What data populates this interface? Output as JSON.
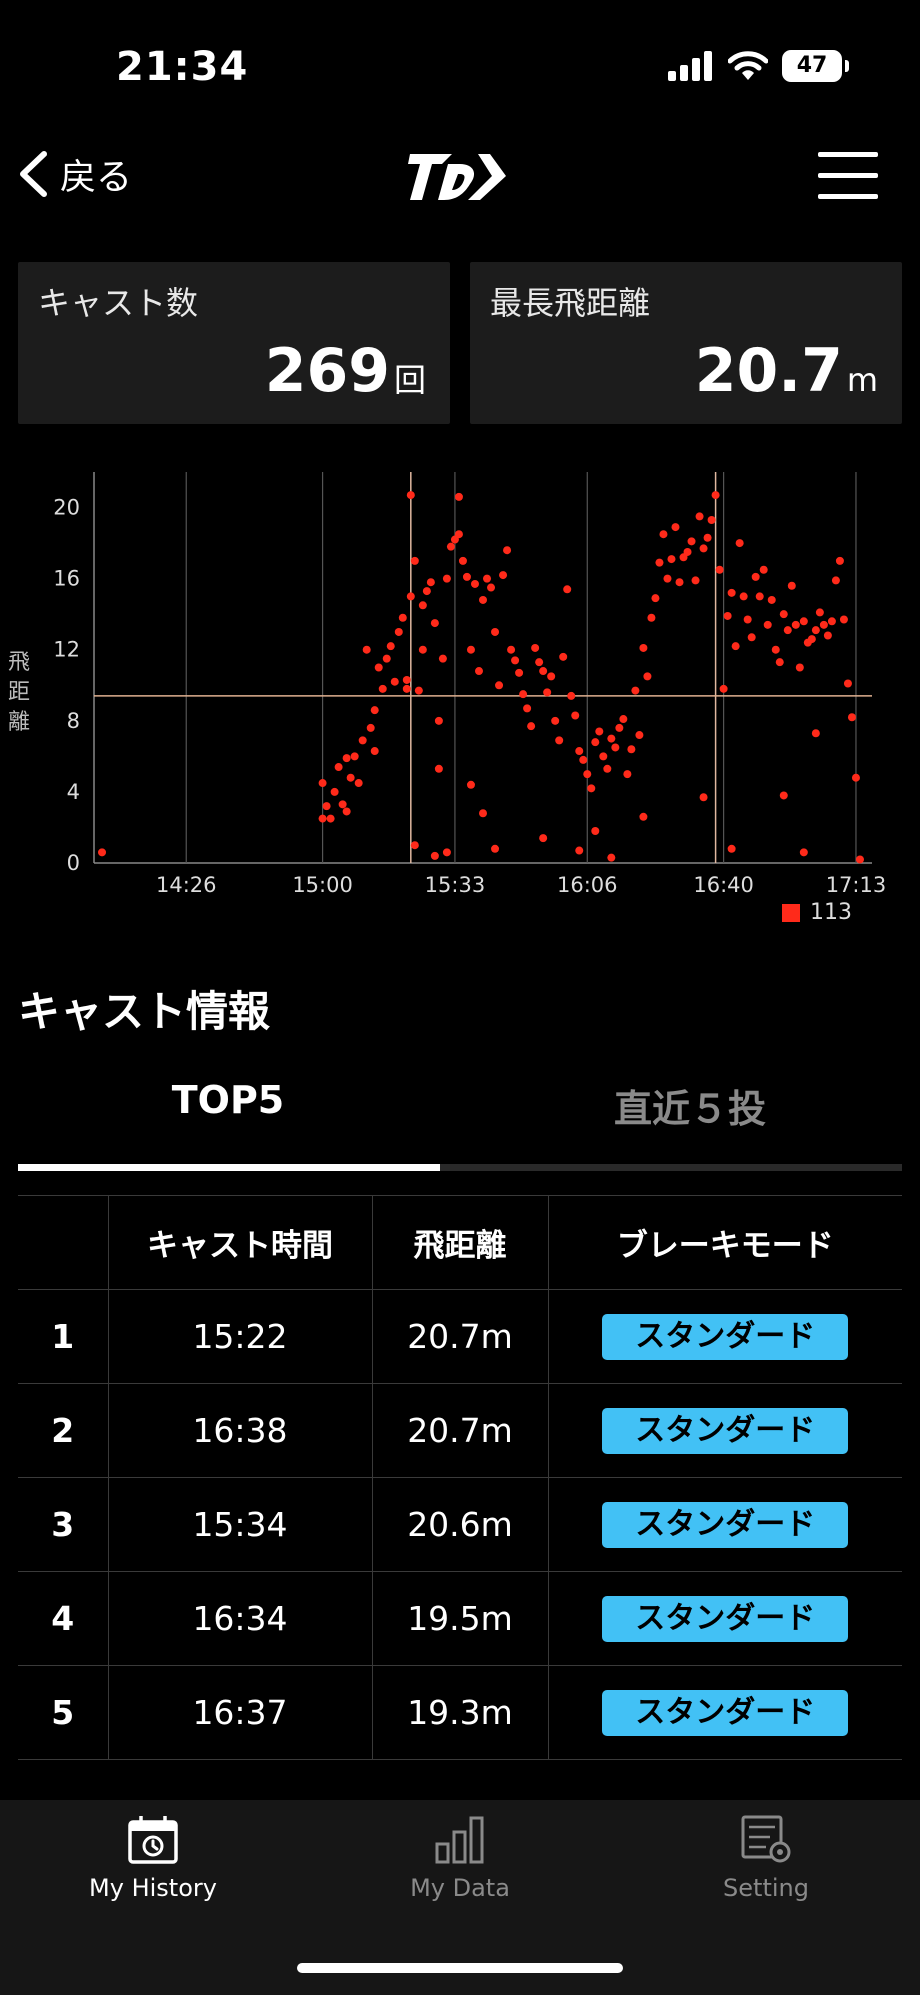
{
  "status_bar": {
    "time": "21:34",
    "battery": "47"
  },
  "nav": {
    "back_label": "戻る",
    "logo": "daiwa-logo"
  },
  "stats": {
    "cast_count": {
      "title": "キャスト数",
      "value": "269",
      "unit": "回"
    },
    "max_distance": {
      "title": "最長飛距離",
      "value": "20.7",
      "unit": "m"
    }
  },
  "chart_data": {
    "type": "scatter",
    "ylabel": "飛距離",
    "ylim": [
      0,
      22
    ],
    "y_ticks": [
      "0",
      "4",
      "8",
      "12",
      "16",
      "20"
    ],
    "x_ticks": [
      "14:26",
      "15:00",
      "15:33",
      "16:06",
      "16:40",
      "17:13"
    ],
    "x_range": [
      "14:03",
      "17:17"
    ],
    "reference_line_y": 9.4,
    "vertical_markers": [
      "15:22",
      "16:38"
    ],
    "legend": "113",
    "color": "#ff2a1a",
    "series": [
      {
        "name": "113",
        "points": [
          [
            "14:05",
            0.6
          ],
          [
            "15:00",
            4.5
          ],
          [
            "15:00",
            2.5
          ],
          [
            "15:01",
            3.2
          ],
          [
            "15:02",
            2.5
          ],
          [
            "15:03",
            4.0
          ],
          [
            "15:04",
            5.4
          ],
          [
            "15:05",
            3.3
          ],
          [
            "15:06",
            2.9
          ],
          [
            "15:06",
            5.9
          ],
          [
            "15:07",
            4.8
          ],
          [
            "15:08",
            6.0
          ],
          [
            "15:09",
            4.5
          ],
          [
            "15:10",
            6.9
          ],
          [
            "15:11",
            12.0
          ],
          [
            "15:12",
            7.6
          ],
          [
            "15:13",
            8.6
          ],
          [
            "15:13",
            6.3
          ],
          [
            "15:14",
            11.0
          ],
          [
            "15:15",
            9.8
          ],
          [
            "15:16",
            11.5
          ],
          [
            "15:17",
            12.2
          ],
          [
            "15:18",
            10.2
          ],
          [
            "15:19",
            13.0
          ],
          [
            "15:20",
            13.8
          ],
          [
            "15:21",
            10.3
          ],
          [
            "15:21",
            9.8
          ],
          [
            "15:22",
            20.7
          ],
          [
            "15:22",
            15.0
          ],
          [
            "15:23",
            17.0
          ],
          [
            "15:24",
            9.7
          ],
          [
            "15:25",
            14.5
          ],
          [
            "15:25",
            12.0
          ],
          [
            "15:26",
            15.3
          ],
          [
            "15:27",
            15.8
          ],
          [
            "15:28",
            13.5
          ],
          [
            "15:29",
            8.0
          ],
          [
            "15:29",
            5.3
          ],
          [
            "15:30",
            11.5
          ],
          [
            "15:31",
            16.0
          ],
          [
            "15:32",
            17.8
          ],
          [
            "15:33",
            18.2
          ],
          [
            "15:34",
            20.6
          ],
          [
            "15:34",
            18.5
          ],
          [
            "15:35",
            17.0
          ],
          [
            "15:36",
            16.1
          ],
          [
            "15:37",
            12.0
          ],
          [
            "15:38",
            15.7
          ],
          [
            "15:39",
            10.8
          ],
          [
            "15:40",
            14.8
          ],
          [
            "15:41",
            16.0
          ],
          [
            "15:42",
            15.5
          ],
          [
            "15:43",
            13.0
          ],
          [
            "15:44",
            10.0
          ],
          [
            "15:45",
            16.2
          ],
          [
            "15:46",
            17.6
          ],
          [
            "15:47",
            12.0
          ],
          [
            "15:48",
            11.4
          ],
          [
            "15:49",
            10.7
          ],
          [
            "15:50",
            9.5
          ],
          [
            "15:51",
            8.7
          ],
          [
            "15:52",
            7.7
          ],
          [
            "15:53",
            12.1
          ],
          [
            "15:54",
            11.3
          ],
          [
            "15:55",
            10.8
          ],
          [
            "15:56",
            9.6
          ],
          [
            "15:57",
            10.5
          ],
          [
            "15:58",
            8.0
          ],
          [
            "15:59",
            6.9
          ],
          [
            "16:00",
            11.6
          ],
          [
            "16:01",
            15.4
          ],
          [
            "16:02",
            9.4
          ],
          [
            "16:03",
            8.3
          ],
          [
            "16:04",
            6.3
          ],
          [
            "16:05",
            5.8
          ],
          [
            "16:06",
            5.0
          ],
          [
            "16:07",
            4.2
          ],
          [
            "16:08",
            6.8
          ],
          [
            "16:09",
            7.4
          ],
          [
            "16:10",
            6.0
          ],
          [
            "16:11",
            5.3
          ],
          [
            "16:12",
            7.0
          ],
          [
            "16:13",
            6.5
          ],
          [
            "16:14",
            7.6
          ],
          [
            "16:15",
            8.1
          ],
          [
            "16:16",
            5.0
          ],
          [
            "16:17",
            6.4
          ],
          [
            "16:18",
            9.7
          ],
          [
            "16:19",
            7.2
          ],
          [
            "16:20",
            12.1
          ],
          [
            "16:21",
            10.5
          ],
          [
            "16:22",
            13.8
          ],
          [
            "16:23",
            14.9
          ],
          [
            "16:24",
            16.9
          ],
          [
            "16:25",
            18.5
          ],
          [
            "16:26",
            16.0
          ],
          [
            "16:27",
            17.1
          ],
          [
            "16:28",
            18.9
          ],
          [
            "16:29",
            15.8
          ],
          [
            "16:30",
            17.2
          ],
          [
            "16:31",
            17.5
          ],
          [
            "16:32",
            18.1
          ],
          [
            "16:33",
            15.9
          ],
          [
            "16:34",
            19.5
          ],
          [
            "16:35",
            17.7
          ],
          [
            "16:36",
            18.3
          ],
          [
            "16:37",
            19.3
          ],
          [
            "16:38",
            20.7
          ],
          [
            "16:39",
            16.5
          ],
          [
            "16:40",
            9.8
          ],
          [
            "16:41",
            13.9
          ],
          [
            "16:42",
            15.2
          ],
          [
            "16:43",
            12.2
          ],
          [
            "16:44",
            18.0
          ],
          [
            "16:45",
            15.0
          ],
          [
            "16:46",
            13.7
          ],
          [
            "16:47",
            12.7
          ],
          [
            "16:48",
            16.1
          ],
          [
            "16:49",
            15.0
          ],
          [
            "16:50",
            16.5
          ],
          [
            "16:51",
            13.4
          ],
          [
            "16:52",
            14.8
          ],
          [
            "16:53",
            12.0
          ],
          [
            "16:54",
            11.3
          ],
          [
            "16:55",
            14.0
          ],
          [
            "16:56",
            13.1
          ],
          [
            "16:57",
            15.6
          ],
          [
            "16:58",
            13.4
          ],
          [
            "16:59",
            11.0
          ],
          [
            "17:00",
            13.6
          ],
          [
            "17:01",
            12.4
          ],
          [
            "17:02",
            12.6
          ],
          [
            "17:03",
            13.1
          ],
          [
            "17:04",
            14.1
          ],
          [
            "17:05",
            13.4
          ],
          [
            "17:06",
            12.8
          ],
          [
            "17:07",
            13.6
          ],
          [
            "17:08",
            15.9
          ],
          [
            "17:09",
            17.0
          ],
          [
            "17:10",
            13.7
          ],
          [
            "17:11",
            10.1
          ],
          [
            "17:12",
            8.2
          ],
          [
            "17:13",
            4.8
          ],
          [
            "17:14",
            0.2
          ],
          [
            "15:23",
            1.0
          ],
          [
            "15:28",
            0.4
          ],
          [
            "15:31",
            0.6
          ],
          [
            "15:37",
            4.4
          ],
          [
            "15:40",
            2.8
          ],
          [
            "15:43",
            0.8
          ],
          [
            "15:55",
            1.4
          ],
          [
            "16:04",
            0.7
          ],
          [
            "16:08",
            1.8
          ],
          [
            "16:12",
            0.3
          ],
          [
            "16:20",
            2.6
          ],
          [
            "16:35",
            3.7
          ],
          [
            "16:42",
            0.8
          ],
          [
            "16:55",
            3.8
          ],
          [
            "17:00",
            0.6
          ],
          [
            "17:03",
            7.3
          ]
        ]
      }
    ]
  },
  "cast_info": {
    "title": "キャスト情報",
    "tabs": [
      "TOP5",
      "直近５投"
    ],
    "columns": [
      "",
      "キャスト時間",
      "飛距離",
      "ブレーキモード"
    ],
    "rows": [
      {
        "rank": "1",
        "time": "15:22",
        "distance": "20.7m",
        "mode": "スタンダード"
      },
      {
        "rank": "2",
        "time": "16:38",
        "distance": "20.7m",
        "mode": "スタンダード"
      },
      {
        "rank": "3",
        "time": "15:34",
        "distance": "20.6m",
        "mode": "スタンダード"
      },
      {
        "rank": "4",
        "time": "16:34",
        "distance": "19.5m",
        "mode": "スタンダード"
      },
      {
        "rank": "5",
        "time": "16:37",
        "distance": "19.3m",
        "mode": "スタンダード"
      }
    ]
  },
  "tabbar": {
    "items": [
      {
        "label": "My History",
        "icon": "calendar-history-icon",
        "active": true
      },
      {
        "label": "My Data",
        "icon": "bar-chart-icon",
        "active": false
      },
      {
        "label": "Setting",
        "icon": "settings-sliders-icon",
        "active": false
      }
    ],
    "active_color": "#ffffff",
    "inactive_color": "#8a8a8a"
  }
}
